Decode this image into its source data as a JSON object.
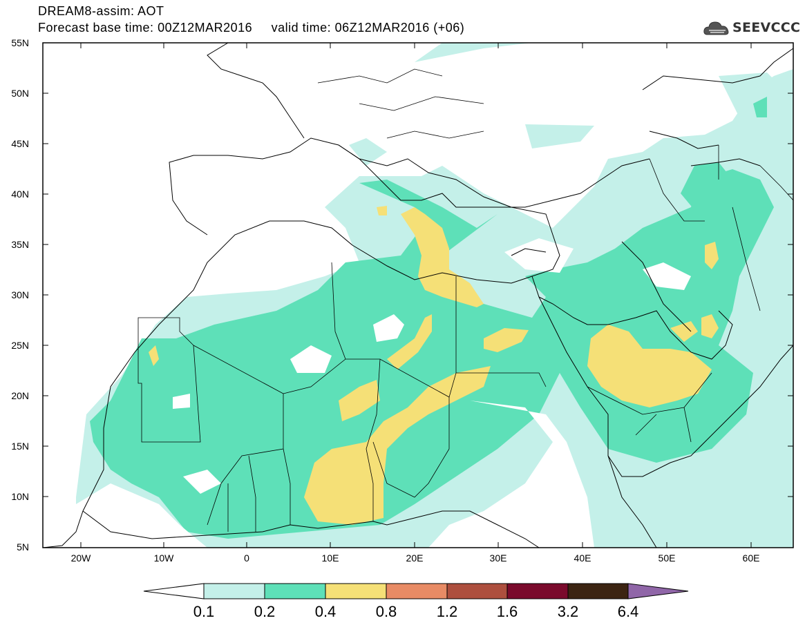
{
  "header": {
    "title": "DREAM8-assim: AOT",
    "forecast_line": "Forecast base time: 00Z12MAR2016     valid time: 06Z12MAR2016 (+06)",
    "logo_text": "SEEVCCC",
    "logo_icon": "cloud-icon"
  },
  "map": {
    "projection": "lat-lon",
    "lon_range": [
      -25,
      65
    ],
    "lat_range": [
      5,
      55
    ],
    "lat_ticks": [
      "55N",
      "50N",
      "45N",
      "40N",
      "35N",
      "30N",
      "25N",
      "20N",
      "15N",
      "10N",
      "5N"
    ],
    "lon_ticks": [
      "20W",
      "10W",
      "0",
      "10E",
      "20E",
      "30E",
      "40E",
      "50E",
      "60E"
    ],
    "field": "Aerosol Optical Thickness"
  },
  "colorbar": {
    "levels": [
      "0.1",
      "0.2",
      "0.4",
      "0.8",
      "1.2",
      "1.6",
      "3.2",
      "6.4"
    ],
    "colors": [
      "#c4f0e9",
      "#5ee0b8",
      "#f5e077",
      "#e88b65",
      "#ad4f3e",
      "#7a0a2c",
      "#3c2412",
      "#9066a8"
    ],
    "low_end_color": "#ffffff"
  }
}
